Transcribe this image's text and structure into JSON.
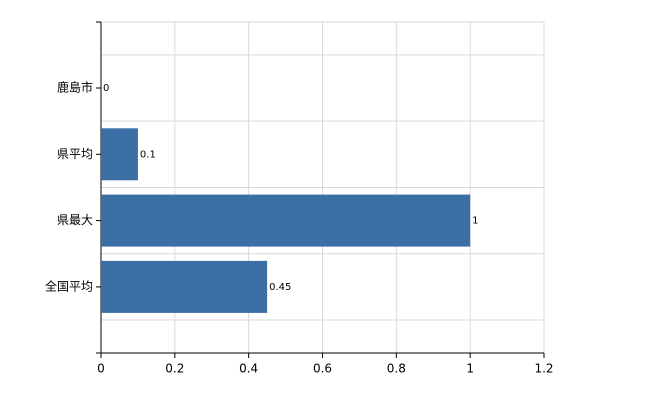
{
  "chart_data": {
    "type": "hbar",
    "categories": [
      "鹿島市",
      "県平均",
      "県最大",
      "全国平均"
    ],
    "values": [
      0,
      0.1,
      1,
      0.45
    ],
    "color": "#3a6ea5",
    "xlim": [
      0,
      1.2
    ],
    "xticks": [
      0,
      0.2,
      0.4,
      0.6,
      0.8,
      1,
      1.2
    ],
    "grid": true
  }
}
